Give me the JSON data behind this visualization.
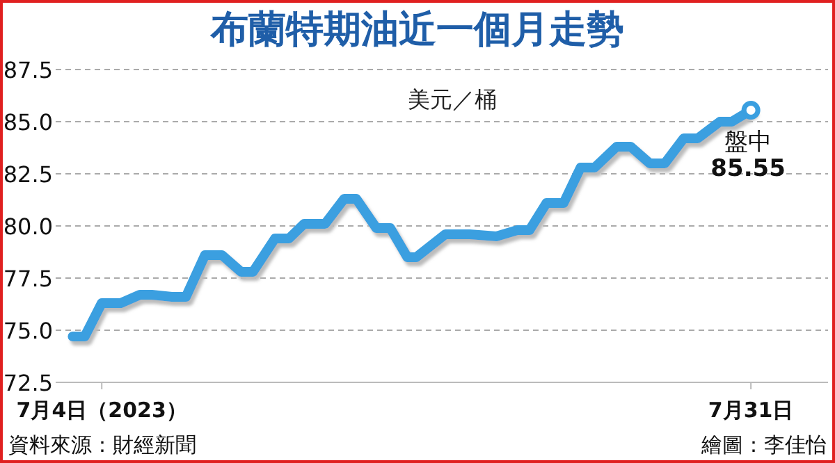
{
  "chart_data": {
    "type": "line",
    "title": "布蘭特期油近一個月走勢",
    "ylabel": "美元／桶",
    "x": [
      "2023-07-02T19:00",
      "2023-07-03T07:00",
      "2023-07-04T00:00",
      "2023-07-04T19:00",
      "2023-07-05T14:00",
      "2023-07-06T02:00",
      "2023-07-06T22:00",
      "2023-07-07T12:00",
      "2023-07-08T07:00",
      "2023-07-09T00:00",
      "2023-07-09T19:00",
      "2023-07-10T07:00",
      "2023-07-11T05:00",
      "2023-07-11T19:00",
      "2023-07-12T10:00",
      "2023-07-13T07:00",
      "2023-07-14T02:00",
      "2023-07-14T14:00",
      "2023-07-15T10:00",
      "2023-07-16T00:00",
      "2023-07-16T17:00",
      "2023-07-17T02:00",
      "2023-07-18T07:00",
      "2023-07-19T07:00",
      "2023-07-20T10:00",
      "2023-07-21T07:00",
      "2023-07-21T19:00",
      "2023-07-22T12:00",
      "2023-07-23T05:00",
      "2023-07-23T22:00",
      "2023-07-24T12:00",
      "2023-07-25T10:00",
      "2023-07-26T00:00",
      "2023-07-26T19:00",
      "2023-07-27T10:00",
      "2023-07-28T05:00",
      "2023-07-28T19:00",
      "2023-07-29T17:00",
      "2023-07-30T05:00",
      "2023-07-31T00:00"
    ],
    "series": [
      {
        "color": "#3a9fe0",
        "values": [
          74.7,
          74.7,
          76.3,
          76.3,
          76.7,
          76.7,
          76.6,
          76.6,
          78.6,
          78.6,
          77.8,
          77.8,
          79.4,
          79.4,
          80.1,
          80.1,
          81.3,
          81.3,
          79.9,
          79.9,
          78.5,
          78.5,
          79.6,
          79.6,
          79.5,
          79.8,
          79.8,
          81.1,
          81.1,
          82.8,
          82.8,
          83.8,
          83.8,
          83.0,
          83.0,
          84.2,
          84.2,
          85.0,
          85.0,
          85.55
        ]
      }
    ],
    "xlim": [
      "2023-07-02T02:00",
      "2023-08-03T05:00"
    ],
    "xticks": [
      {
        "value": "2023-07-04T00:00",
        "label": "7月4日（2023）"
      },
      {
        "value": "2023-07-31T00:00",
        "label": "7月31日"
      }
    ],
    "ylim": [
      72.5,
      87.5
    ],
    "yticks": [
      {
        "value": 72.5,
        "label": "72.5"
      },
      {
        "value": 75,
        "label": "75.0"
      },
      {
        "value": 77.5,
        "label": "77.5"
      },
      {
        "value": 80,
        "label": "80.0"
      },
      {
        "value": 82.5,
        "label": "82.5"
      },
      {
        "value": 85,
        "label": "85.0"
      },
      {
        "value": 87.5,
        "label": "87.5"
      }
    ],
    "grid": "y",
    "marker": "none",
    "line_style": "solid",
    "annotations": [
      {
        "text": "盤中\n85.55",
        "x": "2023-07-31T00:00",
        "y": 85.55
      },
      "資料來源：財經新聞",
      "繪圖：李佳怡"
    ]
  }
}
